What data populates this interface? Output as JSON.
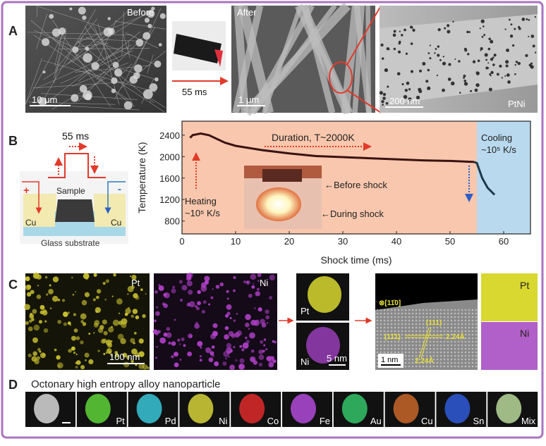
{
  "panel_a": {
    "label": "A",
    "before": "Before",
    "after": "After",
    "time": "55 ms",
    "scale_before": "10 μm",
    "scale_after": "1 μm",
    "scale_tem": "200 nm",
    "material": "PtNi"
  },
  "panel_b": {
    "label": "B",
    "pulse": "55 ms",
    "sample": "Sample",
    "cu_left": "Cu",
    "cu_right": "Cu",
    "plus": "+",
    "minus": "-",
    "substrate": "Glass substrate",
    "duration": "Duration, T~2000K",
    "heating_1": "Heating",
    "heating_2": "~10⁵ K/s",
    "cooling_1": "Cooling",
    "cooling_2": "~10⁵ K/s",
    "before_shock": "←Before shock",
    "during_shock": "←During shock"
  },
  "chart_data": {
    "type": "line",
    "xlabel": "Shock time (ms)",
    "ylabel": "Temperature (K)",
    "xlim": [
      0,
      65
    ],
    "ylim": [
      560,
      2660
    ],
    "xticks": [
      0,
      10,
      20,
      30,
      40,
      50,
      60
    ],
    "yticks": [
      800,
      1200,
      1600,
      2000,
      2400
    ],
    "grid": false,
    "regions": [
      {
        "from": 0,
        "to": 55,
        "color": "#f8c7ad"
      },
      {
        "from": 55,
        "to": 65,
        "color": "#b9d9ee"
      }
    ],
    "x": [
      1.5,
      2,
      3.5,
      5,
      8,
      10,
      15,
      20,
      25,
      30,
      35,
      40,
      45,
      50,
      54.5,
      55,
      56,
      57,
      58.3
    ],
    "y": [
      2350,
      2400,
      2430,
      2400,
      2260,
      2200,
      2120,
      2060,
      2010,
      1990,
      1970,
      1950,
      1930,
      1920,
      1900,
      1880,
      1600,
      1420,
      1290
    ]
  },
  "panel_c": {
    "label": "C",
    "pt": "Pt",
    "ni": "Ni",
    "scale_map": "100 nm",
    "scale_small": "5 nm",
    "zone_axis": "⊗[11̄0]",
    "plane1": "(111)",
    "plane2": "(11̄1)",
    "d1": "2.24Å",
    "d2": "2.24Å",
    "scale_hr": "1 nm"
  },
  "panel_d": {
    "label": "D",
    "title": "Octonary high entropy alloy nanoparticle",
    "tiles": [
      {
        "name": "",
        "color": "#d8d8d8"
      },
      {
        "name": "Pt",
        "color": "#5fd43a"
      },
      {
        "name": "Pd",
        "color": "#38c6d8"
      },
      {
        "name": "Ni",
        "color": "#d6d23a"
      },
      {
        "name": "Co",
        "color": "#e02a2a"
      },
      {
        "name": "Fe",
        "color": "#b24ad8"
      },
      {
        "name": "Au",
        "color": "#34c46a"
      },
      {
        "name": "Cu",
        "color": "#c8662a"
      },
      {
        "name": "Sn",
        "color": "#2f5ad8"
      },
      {
        "name": "Mix",
        "color": "#b8d89a"
      }
    ]
  },
  "colors": {
    "frame": "#a974c0",
    "arrow": "#e23a2a",
    "curve": "#3a1212",
    "cool_arrow": "#2d5fc8",
    "annot": "#e8e03a"
  }
}
